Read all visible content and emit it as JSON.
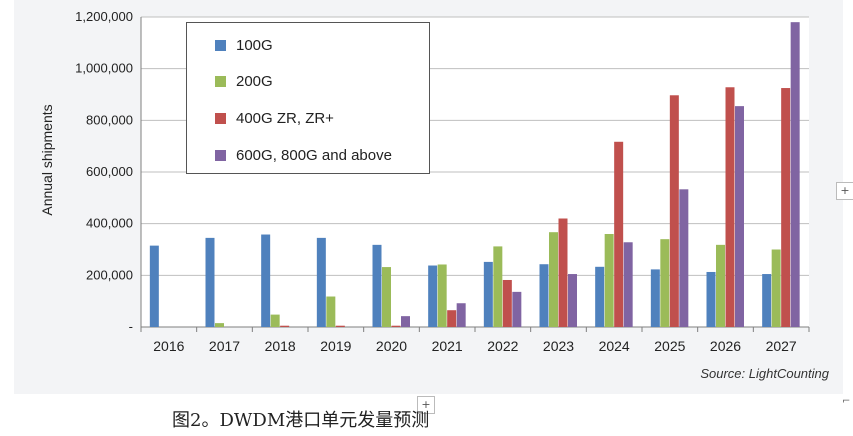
{
  "chart_data": {
    "type": "bar",
    "ylabel": "Annual shipments",
    "ylim": [
      0,
      1200000
    ],
    "yticks": [
      0,
      200000,
      400000,
      600000,
      800000,
      1000000,
      1200000
    ],
    "ytick_labels": [
      "-",
      "200,000",
      "400,000",
      "600,000",
      "800,000",
      "1,000,000",
      "1,200,000"
    ],
    "categories": [
      "2016",
      "2017",
      "2018",
      "2019",
      "2020",
      "2021",
      "2022",
      "2023",
      "2024",
      "2025",
      "2026",
      "2027"
    ],
    "series": [
      {
        "name": "100G",
        "color": "#4f81bd",
        "values": [
          315000,
          345000,
          358000,
          345000,
          318000,
          238000,
          252000,
          243000,
          233000,
          223000,
          213000,
          205000
        ]
      },
      {
        "name": "200G",
        "color": "#9bbb59",
        "values": [
          0,
          15000,
          48000,
          118000,
          232000,
          242000,
          312000,
          367000,
          360000,
          340000,
          318000,
          300000
        ]
      },
      {
        "name": "400G ZR, ZR+",
        "color": "#c0504d",
        "values": [
          0,
          0,
          5000,
          5000,
          5000,
          65000,
          182000,
          420000,
          717000,
          897000,
          928000,
          925000
        ]
      },
      {
        "name": "600G, 800G and above",
        "color": "#8064a2",
        "values": [
          0,
          0,
          0,
          0,
          42000,
          92000,
          136000,
          205000,
          328000,
          533000,
          855000,
          1180000
        ]
      }
    ],
    "source": "Source: LightCounting",
    "legend_position": "top-left"
  },
  "caption": "图2。DWDM港口单元发量预测",
  "plus_icon": "+",
  "corner_icon": "⌐"
}
